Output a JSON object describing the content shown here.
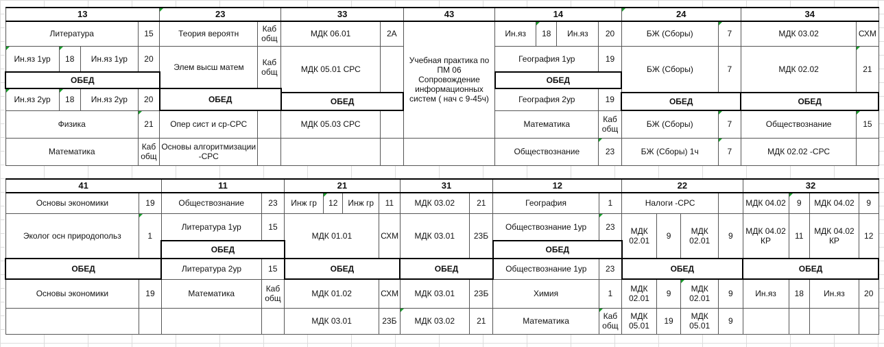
{
  "block1": {
    "headers": [
      "13",
      "23",
      "33",
      "43",
      "14",
      "24",
      "34"
    ],
    "practice": "Учебная практика по ПМ 06 Сопровождение информационных систем ( нач с 9-45ч)",
    "lunch": "ОБЕД",
    "rows": [
      [
        "Литература",
        "15",
        "Теория вероятн",
        "Каб общ",
        "МДК 06.01",
        "2А",
        "Ин.яз",
        "18",
        "Ин.яз",
        "20",
        "БЖ (Сборы)",
        "7",
        "МДК 03.02",
        "СХМ"
      ],
      [
        "Ин.яз 1ур",
        "18",
        "Ин.яз 1ур",
        "20",
        "Элем высш матем",
        "Каб общ",
        "МДК 05.01 СРС",
        "",
        "География 1ур",
        "19",
        "БЖ (Сборы)",
        "7",
        "МДК 02.02",
        "21"
      ],
      [
        "Ин.яз 2ур",
        "18",
        "Ин.яз 2ур",
        "20",
        "География 2ур",
        "19"
      ],
      [
        "Физика",
        "21",
        "Опер сист и ср-СРС",
        "",
        "МДК 05.03 СРС",
        "",
        "Математика",
        "Каб общ",
        "БЖ (Сборы)",
        "7",
        "Обществознание",
        "15"
      ],
      [
        "Математика",
        "Каб общ",
        "Основы алгоритмизации -СРС",
        "",
        "",
        "",
        "Обществознание",
        "23",
        "БЖ (Сборы) 1ч",
        "7",
        "МДК 02.02 -СРС",
        ""
      ]
    ]
  },
  "block2": {
    "headers": [
      "41",
      "11",
      "21",
      "31",
      "12",
      "22",
      "32"
    ],
    "lunch": "ОБЕД",
    "rows": [
      [
        "Основы экономики",
        "19",
        "Обществознание",
        "23",
        "Инж гр",
        "12",
        "Инж гр",
        "11",
        "МДК 03.02",
        "21",
        "География",
        "1",
        "Налоги -СРС",
        "",
        "МДК 04.02",
        "9",
        "МДК 04.02",
        "9"
      ],
      [
        "Эколог осн природопольз",
        "1",
        "Литература 1ур",
        "15",
        "МДК 01.01",
        "СХМ",
        "МДК 03.01",
        "23Б",
        "Обществознание 1ур",
        "23",
        "МДК 02.01",
        "9",
        "МДК 02.01",
        "9",
        "МДК 04.02 КР",
        "11",
        "МДК 04.02 КР",
        "12"
      ],
      [
        "Литература 2ур",
        "15",
        "Обществознание 1ур",
        "23"
      ],
      [
        "Основы экономики",
        "19",
        "Математика",
        "Каб общ",
        "МДК 01.02",
        "СХМ",
        "МДК 03.01",
        "23Б",
        "Химия",
        "1",
        "МДК 02.01",
        "9",
        "МДК 02.01",
        "9",
        "Ин.яз",
        "18",
        "Ин.яз",
        "20"
      ],
      [
        "",
        "",
        "",
        "",
        "МДК 03.01",
        "23Б",
        "МДК 03.02",
        "21",
        "Математика",
        "Каб общ",
        "МДК 05.01",
        "19",
        "МДК 05.01",
        "9",
        "",
        ""
      ]
    ]
  }
}
